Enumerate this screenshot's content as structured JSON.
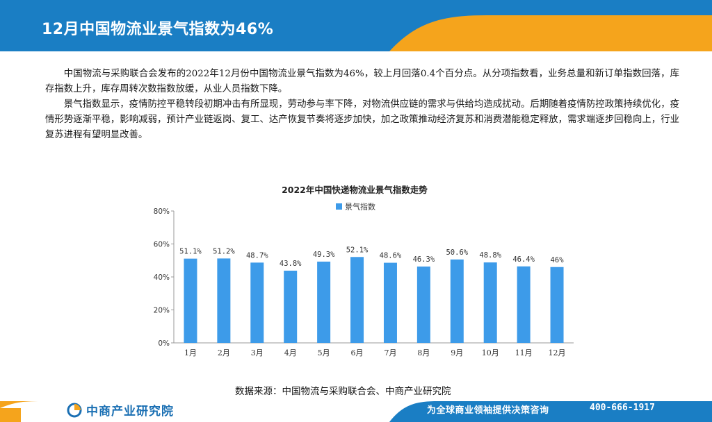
{
  "header": {
    "title": "12月中国物流业景气指数为46%",
    "colors": {
      "blue": "#1a7ec4",
      "orange": "#f5a41c"
    }
  },
  "body": {
    "paragraphs": [
      "中国物流与采购联合会发布的2022年12月份中国物流业景气指数为46%，较上月回落0.4个百分点。从分项指数看，业务总量和新订单指数回落，库存指数上升，库存周转次数指数放缓，从业人员指数下降。",
      "景气指数显示，疫情防控平稳转段初期冲击有所显现，劳动参与率下降，对物流供应链的需求与供给均造成扰动。后期随着疫情防控政策持续优化，疫情形势逐渐平稳，影响减弱，预计产业链返岗、复工、达产恢复节奏将逐步加快，加之政策推动经济复苏和消费潜能稳定释放，需求端逐步回稳向上，行业复苏进程有望明显改善。"
    ]
  },
  "chart_data": {
    "type": "bar",
    "title": "2022年中国快递物流业景气指数走势",
    "categories": [
      "1月",
      "2月",
      "3月",
      "4月",
      "5月",
      "6月",
      "7月",
      "8月",
      "9月",
      "10月",
      "11月",
      "12月"
    ],
    "series": [
      {
        "name": "景气指数",
        "values": [
          51.1,
          51.2,
          48.7,
          43.8,
          49.3,
          52.1,
          48.6,
          46.3,
          50.6,
          48.8,
          46.4,
          46
        ],
        "data_labels": [
          "51.1%",
          "51.2%",
          "48.7%",
          "43.8%",
          "49.3%",
          "52.1%",
          "48.6%",
          "46.3%",
          "50.6%",
          "48.8%",
          "46.4%",
          "46%"
        ],
        "color": "#3d9be9"
      }
    ],
    "ylim": [
      0,
      80
    ],
    "yticks": [
      0,
      20,
      40,
      60,
      80
    ],
    "ytick_labels": [
      "0%",
      "20%",
      "40%",
      "60%",
      "80%"
    ],
    "grid": false,
    "legend_position": "top-center"
  },
  "source": "数据来源：中国物流与采购联合会、中商产业研究院",
  "footer": {
    "logo_text": "中商产业研究院",
    "logo_icon": "zhongshang-logo-icon",
    "slogan": "为全球商业领袖提供决策咨询",
    "phone": "400-666-1917"
  }
}
